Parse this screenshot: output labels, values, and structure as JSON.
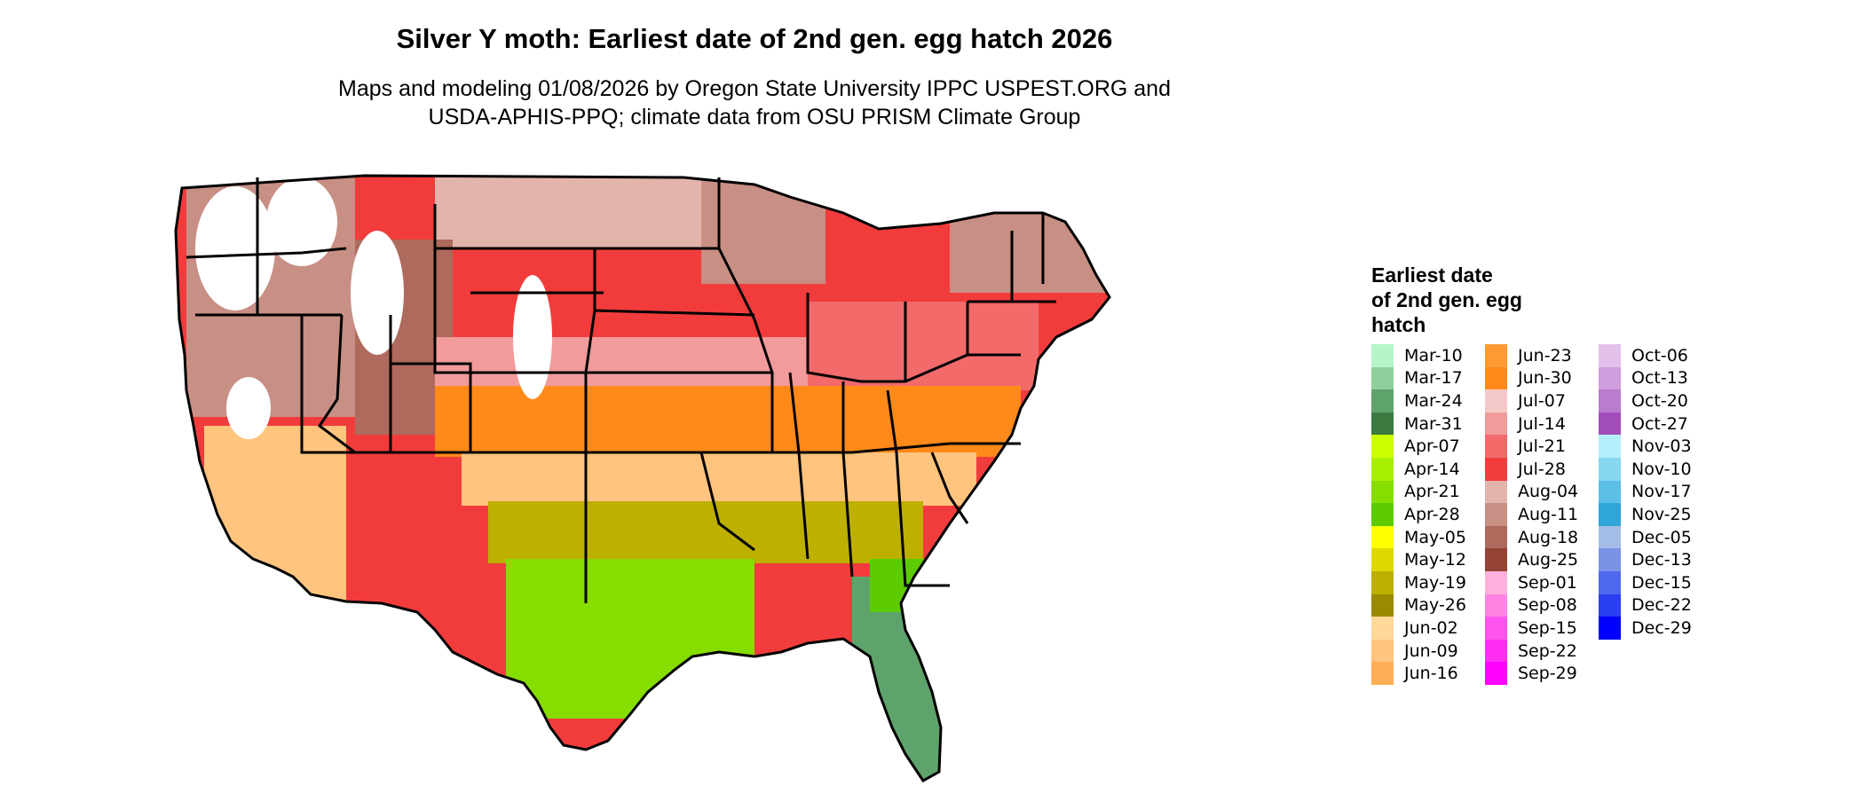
{
  "title": "Silver Y moth: Earliest date of 2nd gen. egg hatch 2026",
  "subtitle_line1": "Maps and modeling 01/08/2026 by Oregon State University IPPC USPEST.ORG and",
  "subtitle_line2": "USDA-APHIS-PPQ; climate data from OSU PRISM Climate Group",
  "legend": {
    "title_line1": "Earliest date",
    "title_line2": "of 2nd gen. egg",
    "title_line3": "hatch",
    "columns": [
      [
        {
          "label": "Mar-10",
          "color": "#b6f5c8"
        },
        {
          "label": "Mar-17",
          "color": "#8ccf9a"
        },
        {
          "label": "Mar-24",
          "color": "#5fa36c"
        },
        {
          "label": "Mar-31",
          "color": "#3b7a40"
        },
        {
          "label": "Apr-07",
          "color": "#ccff00"
        },
        {
          "label": "Apr-14",
          "color": "#a8ee00"
        },
        {
          "label": "Apr-21",
          "color": "#86dd00"
        },
        {
          "label": "Apr-28",
          "color": "#5ccc00"
        },
        {
          "label": "May-05",
          "color": "#ffff00"
        },
        {
          "label": "May-12",
          "color": "#e1d800"
        },
        {
          "label": "May-19",
          "color": "#bdb000"
        },
        {
          "label": "May-26",
          "color": "#9a8a00"
        },
        {
          "label": "Jun-02",
          "color": "#ffd89a"
        },
        {
          "label": "Jun-09",
          "color": "#ffc47e"
        },
        {
          "label": "Jun-16",
          "color": "#ffae55"
        }
      ],
      [
        {
          "label": "Jun-23",
          "color": "#ff9a33"
        },
        {
          "label": "Jun-30",
          "color": "#ff8a1a"
        },
        {
          "label": "Jul-07",
          "color": "#f5c8c8"
        },
        {
          "label": "Jul-14",
          "color": "#f29b9b"
        },
        {
          "label": "Jul-21",
          "color": "#f26a6a"
        },
        {
          "label": "Jul-28",
          "color": "#f23c3c"
        },
        {
          "label": "Aug-04",
          "color": "#e3b4ab"
        },
        {
          "label": "Aug-11",
          "color": "#c88f84"
        },
        {
          "label": "Aug-18",
          "color": "#ad6a5d"
        },
        {
          "label": "Aug-25",
          "color": "#954234"
        },
        {
          "label": "Sep-01",
          "color": "#ffb0dc"
        },
        {
          "label": "Sep-08",
          "color": "#ff84e4"
        },
        {
          "label": "Sep-15",
          "color": "#ff55ee"
        },
        {
          "label": "Sep-22",
          "color": "#ff2ef2"
        },
        {
          "label": "Sep-29",
          "color": "#ff00ff"
        }
      ],
      [
        {
          "label": "Oct-06",
          "color": "#e2c0ea"
        },
        {
          "label": "Oct-13",
          "color": "#cf9edc"
        },
        {
          "label": "Oct-20",
          "color": "#ba7ccc"
        },
        {
          "label": "Oct-27",
          "color": "#a24cba"
        },
        {
          "label": "Nov-03",
          "color": "#b4f0fb"
        },
        {
          "label": "Nov-10",
          "color": "#86d7f0"
        },
        {
          "label": "Nov-17",
          "color": "#5cbfe6"
        },
        {
          "label": "Nov-25",
          "color": "#2ea6da"
        },
        {
          "label": "Dec-05",
          "color": "#a3bde6"
        },
        {
          "label": "Dec-13",
          "color": "#7b93e6"
        },
        {
          "label": "Dec-15",
          "color": "#5068ee"
        },
        {
          "label": "Dec-22",
          "color": "#2a3ff2"
        },
        {
          "label": "Dec-29",
          "color": "#0000ff"
        }
      ]
    ]
  },
  "map": {
    "region": "Contiguous United States",
    "zones": [
      {
        "name": "north-tier",
        "date": "Jul-28",
        "color": "#f23c3c"
      },
      {
        "name": "high-mountains",
        "date": "Aug-11",
        "color": "#c88f84"
      },
      {
        "name": "northern-plains",
        "date": "Aug-04",
        "color": "#e3b4ab"
      },
      {
        "name": "central-plains",
        "date": "Jul-14",
        "color": "#f29b9b"
      },
      {
        "name": "mid-latitude",
        "date": "Jun-30",
        "color": "#ff8a1a"
      },
      {
        "name": "southeast",
        "date": "Jun-09",
        "color": "#ffc47e"
      },
      {
        "name": "gulf-coast",
        "date": "May-19",
        "color": "#bdb000"
      },
      {
        "name": "south-texas",
        "date": "Apr-21",
        "color": "#86dd00"
      },
      {
        "name": "south-florida",
        "date": "Mar-24",
        "color": "#5fa36c"
      },
      {
        "name": "no-development",
        "date": "",
        "color": "#ffffff"
      }
    ]
  }
}
